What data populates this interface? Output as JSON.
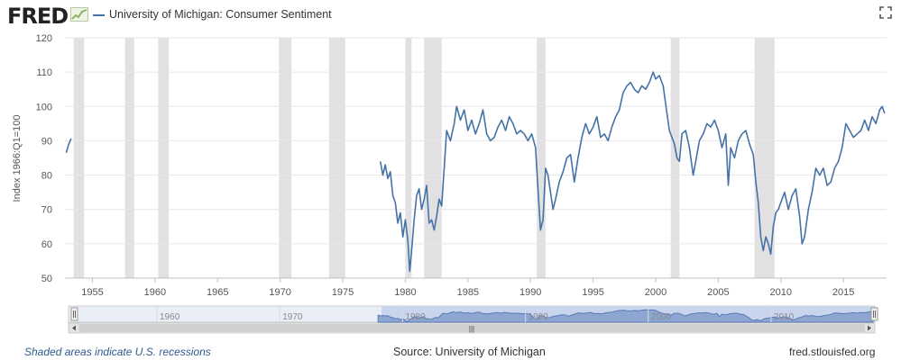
{
  "header": {
    "logo_text": "FRED",
    "series_title": "University of Michigan: Consumer Sentiment",
    "icons": {
      "logo": "fred-logo-graph-icon",
      "fullscreen": "fullscreen-icon"
    }
  },
  "colors": {
    "series": "#4572a7",
    "recession": "#e1e1e1",
    "navigator_fill": "#c8d5ec",
    "navigator_line": "#5a7ab5",
    "logo_graph": "#8fb36a"
  },
  "chart_data": {
    "type": "line",
    "ylabel": "Index 1966:Q1=100",
    "ylim": [
      50,
      120
    ],
    "yticks": [
      50,
      60,
      70,
      80,
      90,
      100,
      110,
      120
    ],
    "xlim": [
      1952.8,
      2018.45
    ],
    "xticks": [
      1955,
      1960,
      1965,
      1970,
      1975,
      1980,
      1985,
      1990,
      1995,
      2000,
      2005,
      2010,
      2015
    ],
    "xtick_labels": [
      "1955",
      "1960",
      "1965",
      "1970",
      "1975",
      "1980",
      "1985",
      "1990",
      "1995",
      "2000",
      "2005",
      "2010",
      "2015"
    ],
    "grid": "horizontal",
    "recessions": [
      [
        1953.5,
        1954.33
      ],
      [
        1957.6,
        1958.33
      ],
      [
        1960.25,
        1961.1
      ],
      [
        1969.9,
        1970.9
      ],
      [
        1973.9,
        1975.2
      ],
      [
        1980.0,
        1980.5
      ],
      [
        1981.5,
        1982.9
      ],
      [
        1990.5,
        1991.2
      ],
      [
        2001.2,
        2001.9
      ],
      [
        2007.9,
        2009.5
      ]
    ],
    "series": [
      {
        "segment": "1952-1953",
        "x": [
          1952.9,
          1953.1,
          1953.3
        ],
        "y": [
          86.5,
          89,
          90.7
        ]
      },
      {
        "segment": "1978-2018",
        "x": [
          1978.0,
          1978.2,
          1978.4,
          1978.6,
          1978.8,
          1979.0,
          1979.2,
          1979.4,
          1979.6,
          1979.8,
          1980.0,
          1980.2,
          1980.35,
          1980.5,
          1980.7,
          1980.9,
          1981.1,
          1981.3,
          1981.5,
          1981.7,
          1981.9,
          1982.1,
          1982.3,
          1982.5,
          1982.7,
          1982.9,
          1983.1,
          1983.3,
          1983.6,
          1983.9,
          1984.1,
          1984.4,
          1984.7,
          1985.0,
          1985.3,
          1985.6,
          1985.9,
          1986.2,
          1986.5,
          1986.8,
          1987.1,
          1987.4,
          1987.7,
          1988.0,
          1988.3,
          1988.6,
          1988.9,
          1989.2,
          1989.5,
          1989.8,
          1990.1,
          1990.4,
          1990.6,
          1990.8,
          1991.0,
          1991.2,
          1991.4,
          1991.6,
          1991.8,
          1992.0,
          1992.3,
          1992.6,
          1992.9,
          1993.2,
          1993.5,
          1993.8,
          1994.1,
          1994.4,
          1994.7,
          1995.0,
          1995.3,
          1995.6,
          1995.9,
          1996.2,
          1996.5,
          1996.8,
          1997.1,
          1997.4,
          1997.7,
          1998.0,
          1998.3,
          1998.6,
          1998.9,
          1999.2,
          1999.5,
          1999.8,
          2000.0,
          2000.3,
          2000.6,
          2000.9,
          2001.1,
          2001.3,
          2001.5,
          2001.7,
          2001.9,
          2002.1,
          2002.4,
          2002.7,
          2003.0,
          2003.2,
          2003.5,
          2003.8,
          2004.1,
          2004.4,
          2004.7,
          2005.0,
          2005.3,
          2005.6,
          2005.8,
          2006.0,
          2006.3,
          2006.6,
          2006.9,
          2007.2,
          2007.5,
          2007.8,
          2008.0,
          2008.2,
          2008.4,
          2008.6,
          2008.8,
          2009.0,
          2009.2,
          2009.4,
          2009.6,
          2009.8,
          2010.0,
          2010.3,
          2010.6,
          2010.9,
          2011.2,
          2011.5,
          2011.7,
          2011.9,
          2012.2,
          2012.5,
          2012.8,
          2013.1,
          2013.4,
          2013.7,
          2014.0,
          2014.3,
          2014.6,
          2014.9,
          2015.2,
          2015.5,
          2015.8,
          2016.1,
          2016.4,
          2016.7,
          2017.0,
          2017.3,
          2017.6,
          2017.9,
          2018.1,
          2018.3
        ],
        "y": [
          84,
          80,
          83,
          79,
          81,
          74,
          72,
          66,
          69,
          62,
          67,
          61,
          52,
          58,
          67,
          74,
          76,
          70,
          73,
          77,
          66,
          67,
          64,
          68,
          73,
          71,
          82,
          93,
          90,
          95,
          100,
          96,
          99,
          93,
          96,
          92,
          95,
          99,
          92,
          90,
          91,
          94,
          96,
          93,
          97,
          95,
          92,
          93,
          92,
          90,
          92,
          88,
          76,
          64,
          67,
          82,
          80,
          75,
          70,
          73,
          78,
          81,
          85,
          86,
          78,
          85,
          91,
          95,
          92,
          94,
          97,
          91,
          92,
          90,
          94,
          97,
          99,
          104,
          106,
          107,
          105,
          104,
          106,
          105,
          107,
          110,
          108,
          109,
          106,
          98,
          93,
          91,
          89,
          85,
          84,
          92,
          93,
          88,
          80,
          84,
          90,
          92,
          95,
          94,
          96,
          93,
          88,
          92,
          77,
          88,
          85,
          90,
          92,
          93,
          89,
          86,
          78,
          72,
          62,
          58,
          62,
          60,
          57,
          65,
          69,
          70,
          72,
          75,
          70,
          74,
          76,
          68,
          60,
          62,
          70,
          75,
          82,
          80,
          82,
          77,
          78,
          82,
          84,
          88,
          95,
          93,
          91,
          92,
          93,
          96,
          93,
          97,
          95,
          99,
          100,
          98
        ]
      }
    ]
  },
  "navigator": {
    "tick_labels": [
      "1960",
      "1970",
      "1980",
      "1990",
      "2000",
      "2010"
    ],
    "scroll_grip": "|||"
  },
  "footer": {
    "left": "Shaded areas indicate U.S. recessions",
    "center": "Source: University of Michigan",
    "right": "fred.stlouisfed.org"
  }
}
